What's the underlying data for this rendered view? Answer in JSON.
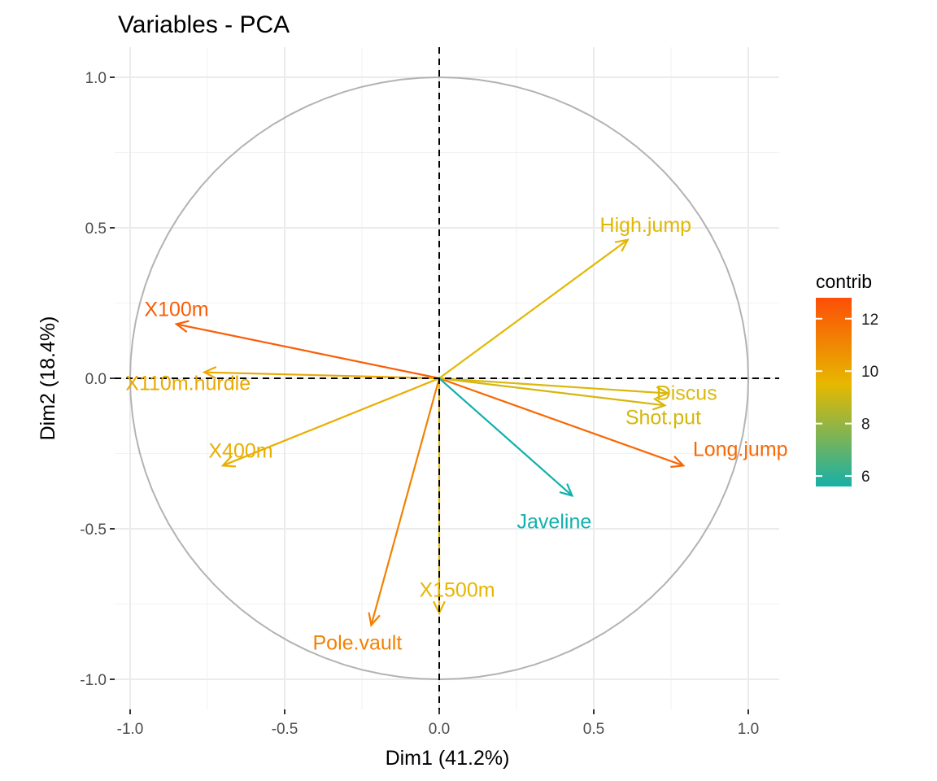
{
  "chart_data": {
    "type": "scatter",
    "title": "Variables - PCA",
    "xlabel": "Dim1 (41.2%)",
    "ylabel": "Dim2 (18.4%)",
    "xlim": [
      -1.05,
      1.1
    ],
    "ylim": [
      -1.1,
      1.1
    ],
    "x_ticks": [
      -1.0,
      -0.5,
      0.0,
      0.5,
      1.0
    ],
    "y_ticks": [
      -1.0,
      -0.5,
      0.0,
      0.5,
      1.0
    ],
    "x_tick_labels": [
      "-1.0",
      "-0.5",
      "0.0",
      "0.5",
      "1.0"
    ],
    "y_tick_labels": [
      "-1.0",
      "-0.5",
      "0.0",
      "0.5",
      "1.0"
    ],
    "grid": true,
    "correlation_circle": true,
    "reference_lines": [
      0,
      0
    ],
    "legend": {
      "title": "contrib",
      "position": "right",
      "ticks": [
        12,
        10,
        8,
        6
      ],
      "tick_labels": [
        "12",
        "10",
        "8",
        "6"
      ],
      "range": [
        5.6,
        12.8
      ],
      "gradient": [
        "#00AFBB",
        "#E7B800",
        "#FC4E07"
      ],
      "midpoint": 9.5
    },
    "variables": [
      {
        "name": "X100m",
        "x": -0.85,
        "y": 0.18,
        "contrib": 12.3
      },
      {
        "name": "Long.jump",
        "x": 0.79,
        "y": -0.29,
        "contrib": 12.0
      },
      {
        "name": "Shot.put",
        "x": 0.73,
        "y": -0.09,
        "contrib": 9.2
      },
      {
        "name": "High.jump",
        "x": 0.61,
        "y": 0.46,
        "contrib": 9.4
      },
      {
        "name": "X400m",
        "x": -0.7,
        "y": -0.29,
        "contrib": 9.8
      },
      {
        "name": "X110m.hurdle",
        "x": -0.76,
        "y": 0.02,
        "contrib": 10.0
      },
      {
        "name": "Discus",
        "x": 0.74,
        "y": -0.05,
        "contrib": 9.3
      },
      {
        "name": "Pole.vault",
        "x": -0.22,
        "y": -0.82,
        "contrib": 11.2
      },
      {
        "name": "Javeline",
        "x": 0.43,
        "y": -0.39,
        "contrib": 5.9
      },
      {
        "name": "X1500m",
        "x": 0.0,
        "y": -0.78,
        "contrib": 9.6
      }
    ]
  }
}
